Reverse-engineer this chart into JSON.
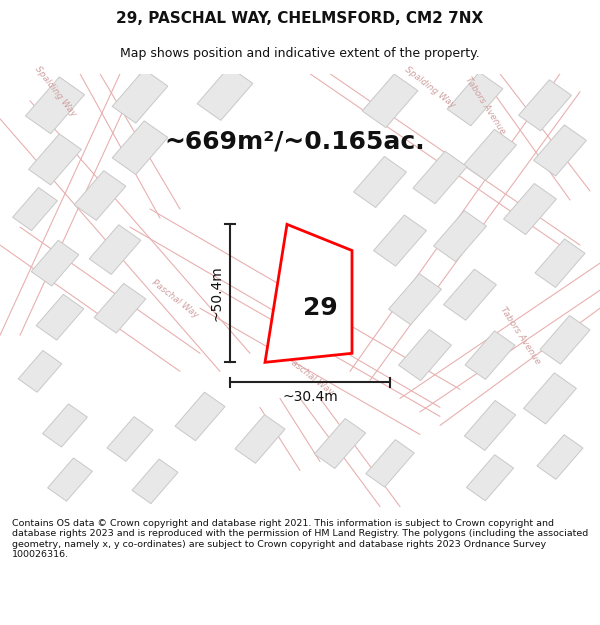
{
  "title": "29, PASCHAL WAY, CHELMSFORD, CM2 7NX",
  "subtitle": "Map shows position and indicative extent of the property.",
  "area_text": "~669m²/~0.165ac.",
  "dim_width": "~30.4m",
  "dim_height": "~50.4m",
  "property_number": "29",
  "footer_text": "Contains OS data © Crown copyright and database right 2021. This information is subject to Crown copyright and database rights 2023 and is reproduced with the permission of HM Land Registry. The polygons (including the associated geometry, namely x, y co-ordinates) are subject to Crown copyright and database rights 2023 Ordnance Survey 100026316.",
  "bg_color": "#ffffff",
  "map_bg": "#ffffff",
  "building_fill": "#e8e8e8",
  "building_edge": "#c8c8c8",
  "road_line_color": "#e8b0b0",
  "plot_color": "#ff0000",
  "label_road_color": "#d0a0a0",
  "title_fontsize": 11,
  "subtitle_fontsize": 9,
  "area_fontsize": 18,
  "dim_fontsize": 10,
  "prop_num_fontsize": 18
}
